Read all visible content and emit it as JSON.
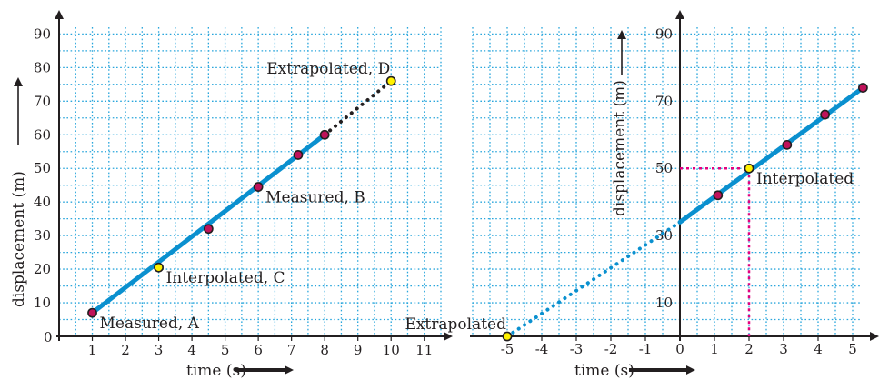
{
  "chart_data": [
    {
      "type": "line",
      "title": "",
      "xlabel": "time (s)",
      "ylabel": "displacement (m)",
      "xlim": [
        0,
        11.5
      ],
      "ylim": [
        0,
        92
      ],
      "x_ticks": [
        1,
        2,
        3,
        4,
        5,
        6,
        7,
        8,
        9,
        10,
        11
      ],
      "y_ticks": [
        10,
        20,
        30,
        40,
        50,
        60,
        70,
        80,
        90
      ],
      "origin_label": "0",
      "grid": true,
      "colors": {
        "line": "#0a90cf",
        "point": "#c0125a",
        "highlight": "#fff200",
        "grid": "#2aa6dc",
        "extrapolation": "#231f20"
      },
      "series": [
        {
          "style": "solid",
          "x": [
            1,
            8
          ],
          "y": [
            7,
            60
          ]
        },
        {
          "style": "dotted",
          "x": [
            8,
            10
          ],
          "y": [
            60,
            76
          ]
        }
      ],
      "points": [
        {
          "x": 1,
          "y": 7,
          "kind": "measured"
        },
        {
          "x": 3,
          "y": 20.5,
          "kind": "highlight"
        },
        {
          "x": 4.5,
          "y": 32,
          "kind": "measured"
        },
        {
          "x": 6,
          "y": 44.5,
          "kind": "measured"
        },
        {
          "x": 7.2,
          "y": 54,
          "kind": "measured"
        },
        {
          "x": 8,
          "y": 60,
          "kind": "measured"
        },
        {
          "x": 10,
          "y": 76,
          "kind": "highlight"
        }
      ],
      "annotations": [
        {
          "text": "Measured, A",
          "x": 1,
          "y": 7,
          "anchor": "right-below"
        },
        {
          "text": "Interpolated, C",
          "x": 3,
          "y": 20.5,
          "anchor": "right-below"
        },
        {
          "text": "Measured, B",
          "x": 6,
          "y": 44.5,
          "anchor": "right-below"
        },
        {
          "text": "Extrapolated, D",
          "x": 10,
          "y": 76,
          "anchor": "left-above"
        }
      ]
    },
    {
      "type": "line",
      "title": "",
      "xlabel": "time (s)",
      "ylabel": "displacement (m)",
      "xlim": [
        -6,
        5.5
      ],
      "ylim": [
        0,
        92
      ],
      "x_ticks": [
        -5,
        -4,
        -3,
        -2,
        -1,
        0,
        1,
        2,
        3,
        4,
        5
      ],
      "y_ticks": [
        10,
        30,
        50,
        70,
        90
      ],
      "grid": true,
      "colors": {
        "line": "#0a90cf",
        "point": "#c0125a",
        "highlight": "#fff200",
        "grid": "#2aa6dc",
        "guide": "#e5007e"
      },
      "series": [
        {
          "style": "solid",
          "x": [
            0,
            5.3
          ],
          "y": [
            34,
            74
          ]
        },
        {
          "style": "dotted",
          "x": [
            -5,
            0
          ],
          "y": [
            0,
            34
          ]
        }
      ],
      "points": [
        {
          "x": 1.1,
          "y": 42,
          "kind": "measured"
        },
        {
          "x": 2,
          "y": 50,
          "kind": "highlight"
        },
        {
          "x": 3.1,
          "y": 57,
          "kind": "measured"
        },
        {
          "x": 4.2,
          "y": 66,
          "kind": "measured"
        },
        {
          "x": 5.3,
          "y": 74,
          "kind": "measured"
        },
        {
          "x": -5,
          "y": 0,
          "kind": "highlight"
        }
      ],
      "guides": [
        {
          "x": 2,
          "y": 50
        }
      ],
      "annotations": [
        {
          "text": "Interpolated",
          "x": 2,
          "y": 50,
          "anchor": "right-below"
        },
        {
          "text": "Extrapolated",
          "x": -5,
          "y": 0,
          "anchor": "left-above"
        }
      ]
    }
  ]
}
